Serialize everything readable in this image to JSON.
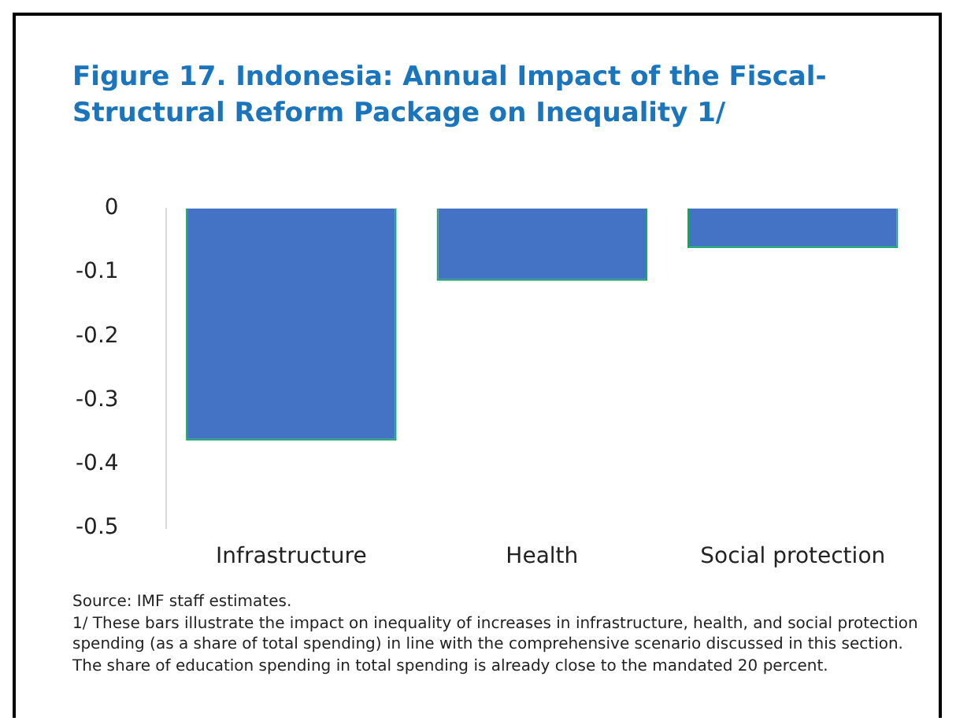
{
  "chart_data": {
    "type": "bar",
    "title": "Figure 17. Indonesia: Annual Impact of the Fiscal-Structural Reform Package on Inequality 1/",
    "categories": [
      "Infrastructure",
      "Health",
      "Social protection"
    ],
    "values": [
      -0.363,
      -0.113,
      -0.062
    ],
    "color": "#4472c4",
    "ylim": [
      -0.5,
      0
    ],
    "yticks": [
      -0.5,
      -0.4,
      -0.3,
      -0.2,
      -0.1,
      0
    ],
    "grid": false,
    "annotations": [
      "Source: IMF staff estimates.",
      "1/ These bars illustrate the impact on inequality of increases in infrastructure, health, and social protection spending (as a share of total spending) in line with the comprehensive scenario discussed in this section. The share of education spending in total spending is already close to the mandated 20 percent."
    ]
  }
}
